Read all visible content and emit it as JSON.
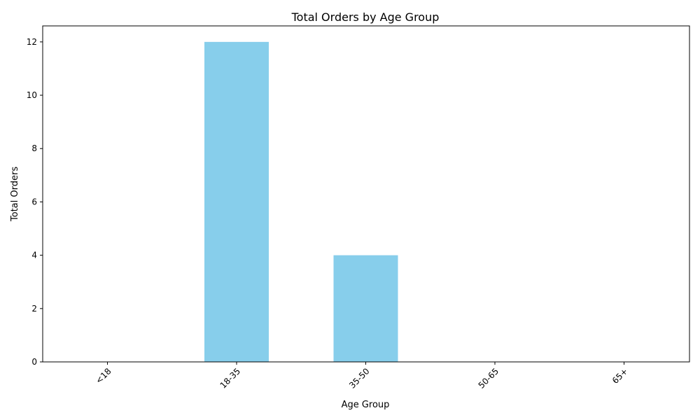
{
  "chart_data": {
    "type": "bar",
    "title": "Total Orders by Age Group",
    "xlabel": "Age Group",
    "ylabel": "Total Orders",
    "categories": [
      "<18",
      "18-35",
      "35-50",
      "50-65",
      "65+"
    ],
    "values": [
      0,
      12,
      4,
      0,
      0
    ],
    "ylim": [
      0,
      12.6
    ],
    "yticks": [
      0,
      2,
      4,
      6,
      8,
      10,
      12
    ],
    "bar_color": "#87ceeb",
    "grid": false,
    "legend": "none"
  }
}
